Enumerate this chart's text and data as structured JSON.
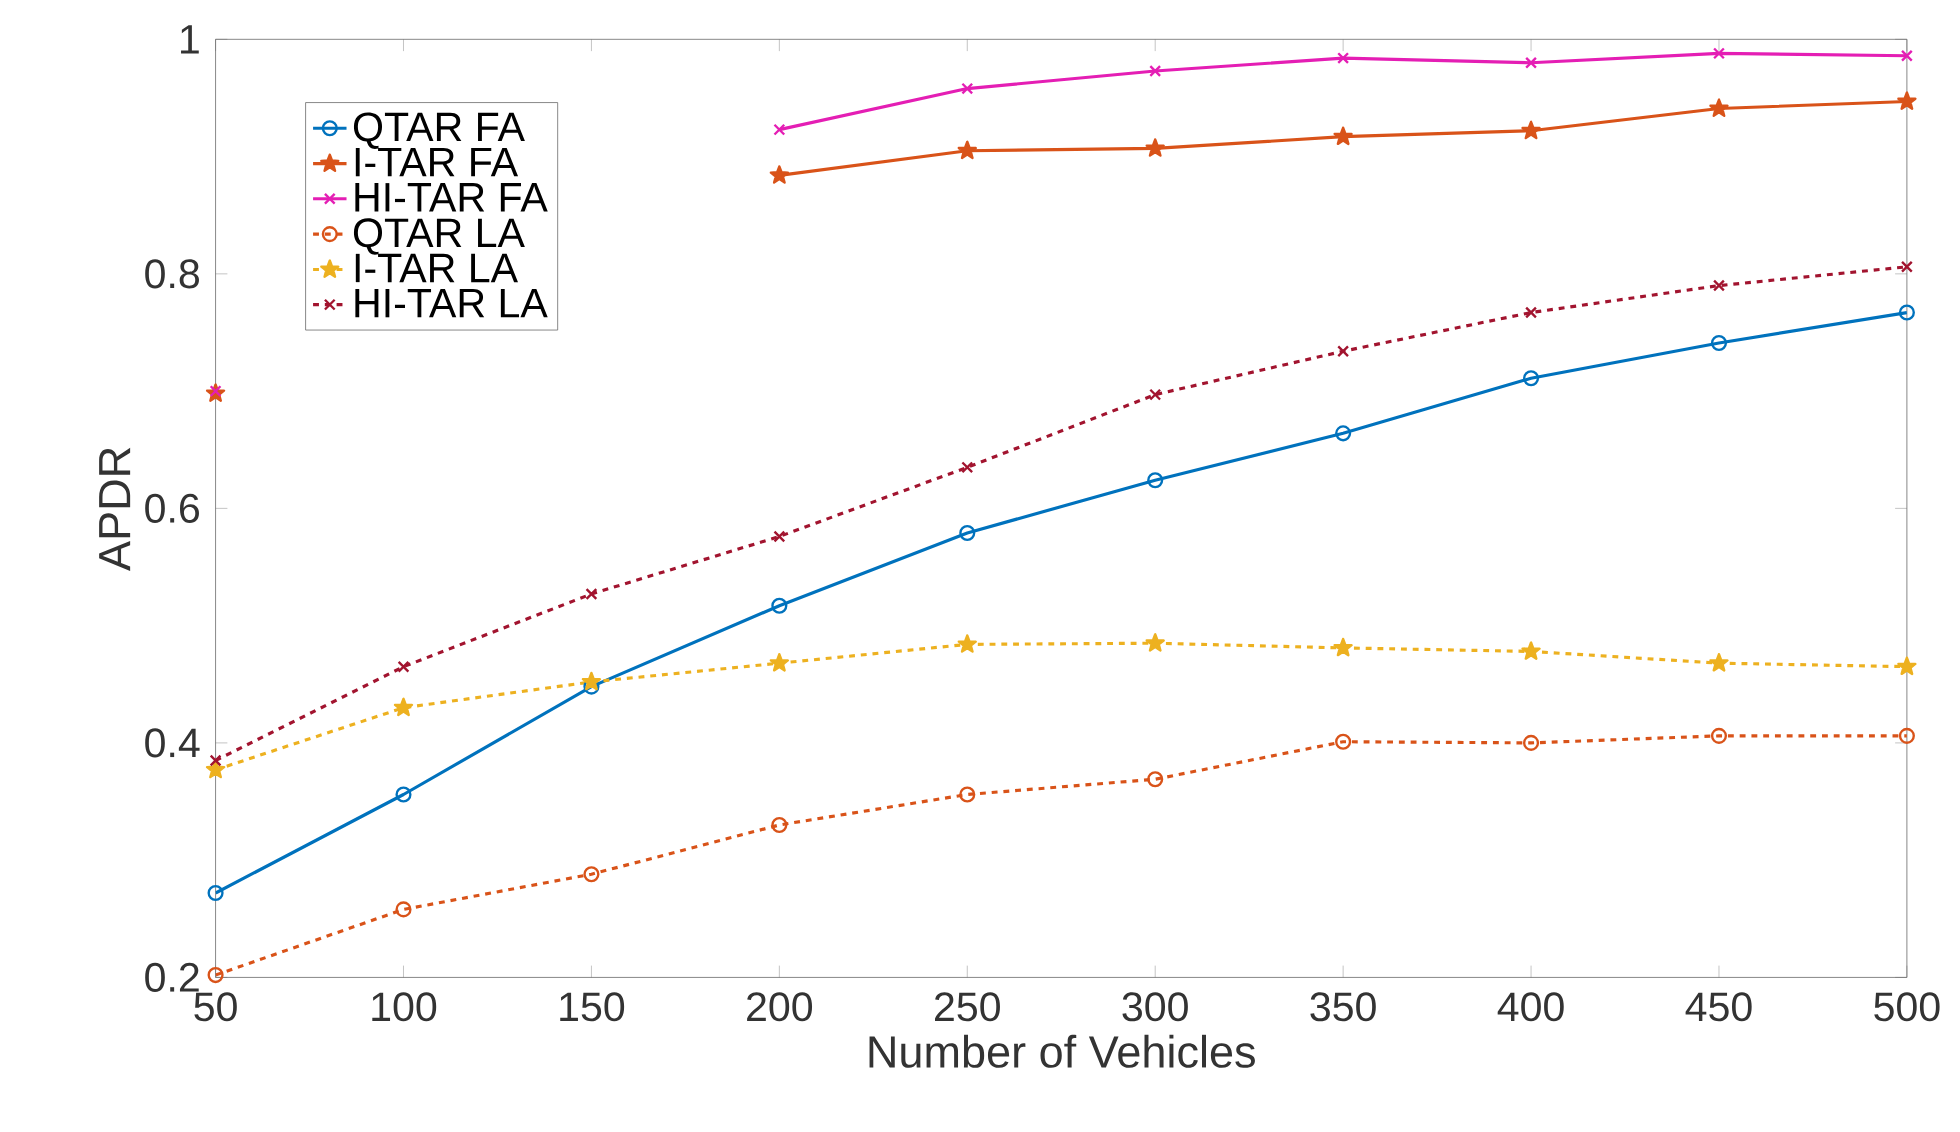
{
  "chart_data": {
    "type": "line",
    "xlabel": "Number of Vehicles",
    "ylabel": "APDR",
    "x": [
      50,
      100,
      150,
      200,
      250,
      300,
      350,
      400,
      450,
      500
    ],
    "xlim": [
      50,
      500
    ],
    "xticks": [
      50,
      100,
      150,
      200,
      250,
      300,
      350,
      400,
      450,
      500
    ],
    "ylim": [
      0.2,
      1
    ],
    "yticks": [
      0.2,
      0.4,
      0.6,
      0.8,
      1
    ],
    "legend": "top left",
    "grid": false,
    "series": [
      {
        "name": "QTAR FA",
        "color": "#0072bd",
        "marker": "circle",
        "line_style": "solid",
        "values": [
          0.272,
          0.356,
          0.448,
          0.517,
          0.579,
          0.624,
          0.664,
          0.711,
          0.741,
          0.767
        ]
      },
      {
        "name": "I-TAR FA",
        "color": "#d95319",
        "marker": "star",
        "line_style": "solid",
        "values": [
          0.698,
          null,
          null,
          0.884,
          0.905,
          0.907,
          0.917,
          0.922,
          0.941,
          0.947
        ]
      },
      {
        "name": "HI-TAR FA",
        "color": "#e41eb4",
        "marker": "cross",
        "line_style": "solid",
        "values": [
          0.7,
          null,
          null,
          0.923,
          0.958,
          0.973,
          0.984,
          0.98,
          0.988,
          0.986
        ]
      },
      {
        "name": "QTAR LA",
        "color": "#d95319",
        "marker": "circle",
        "line_style": "dashed",
        "values": [
          0.202,
          0.258,
          0.288,
          0.33,
          0.356,
          0.369,
          0.401,
          0.4,
          0.406,
          0.406
        ]
      },
      {
        "name": "I-TAR LA",
        "color": "#edb120",
        "marker": "star",
        "line_style": "dashed",
        "values": [
          0.377,
          0.43,
          0.452,
          0.468,
          0.484,
          0.485,
          0.481,
          0.478,
          0.468,
          0.465
        ]
      },
      {
        "name": "HI-TAR LA",
        "color": "#a2142f",
        "marker": "cross",
        "line_style": "dashed",
        "values": [
          0.385,
          0.465,
          0.527,
          0.576,
          0.635,
          0.697,
          0.734,
          0.767,
          0.79,
          0.806
        ]
      }
    ]
  }
}
